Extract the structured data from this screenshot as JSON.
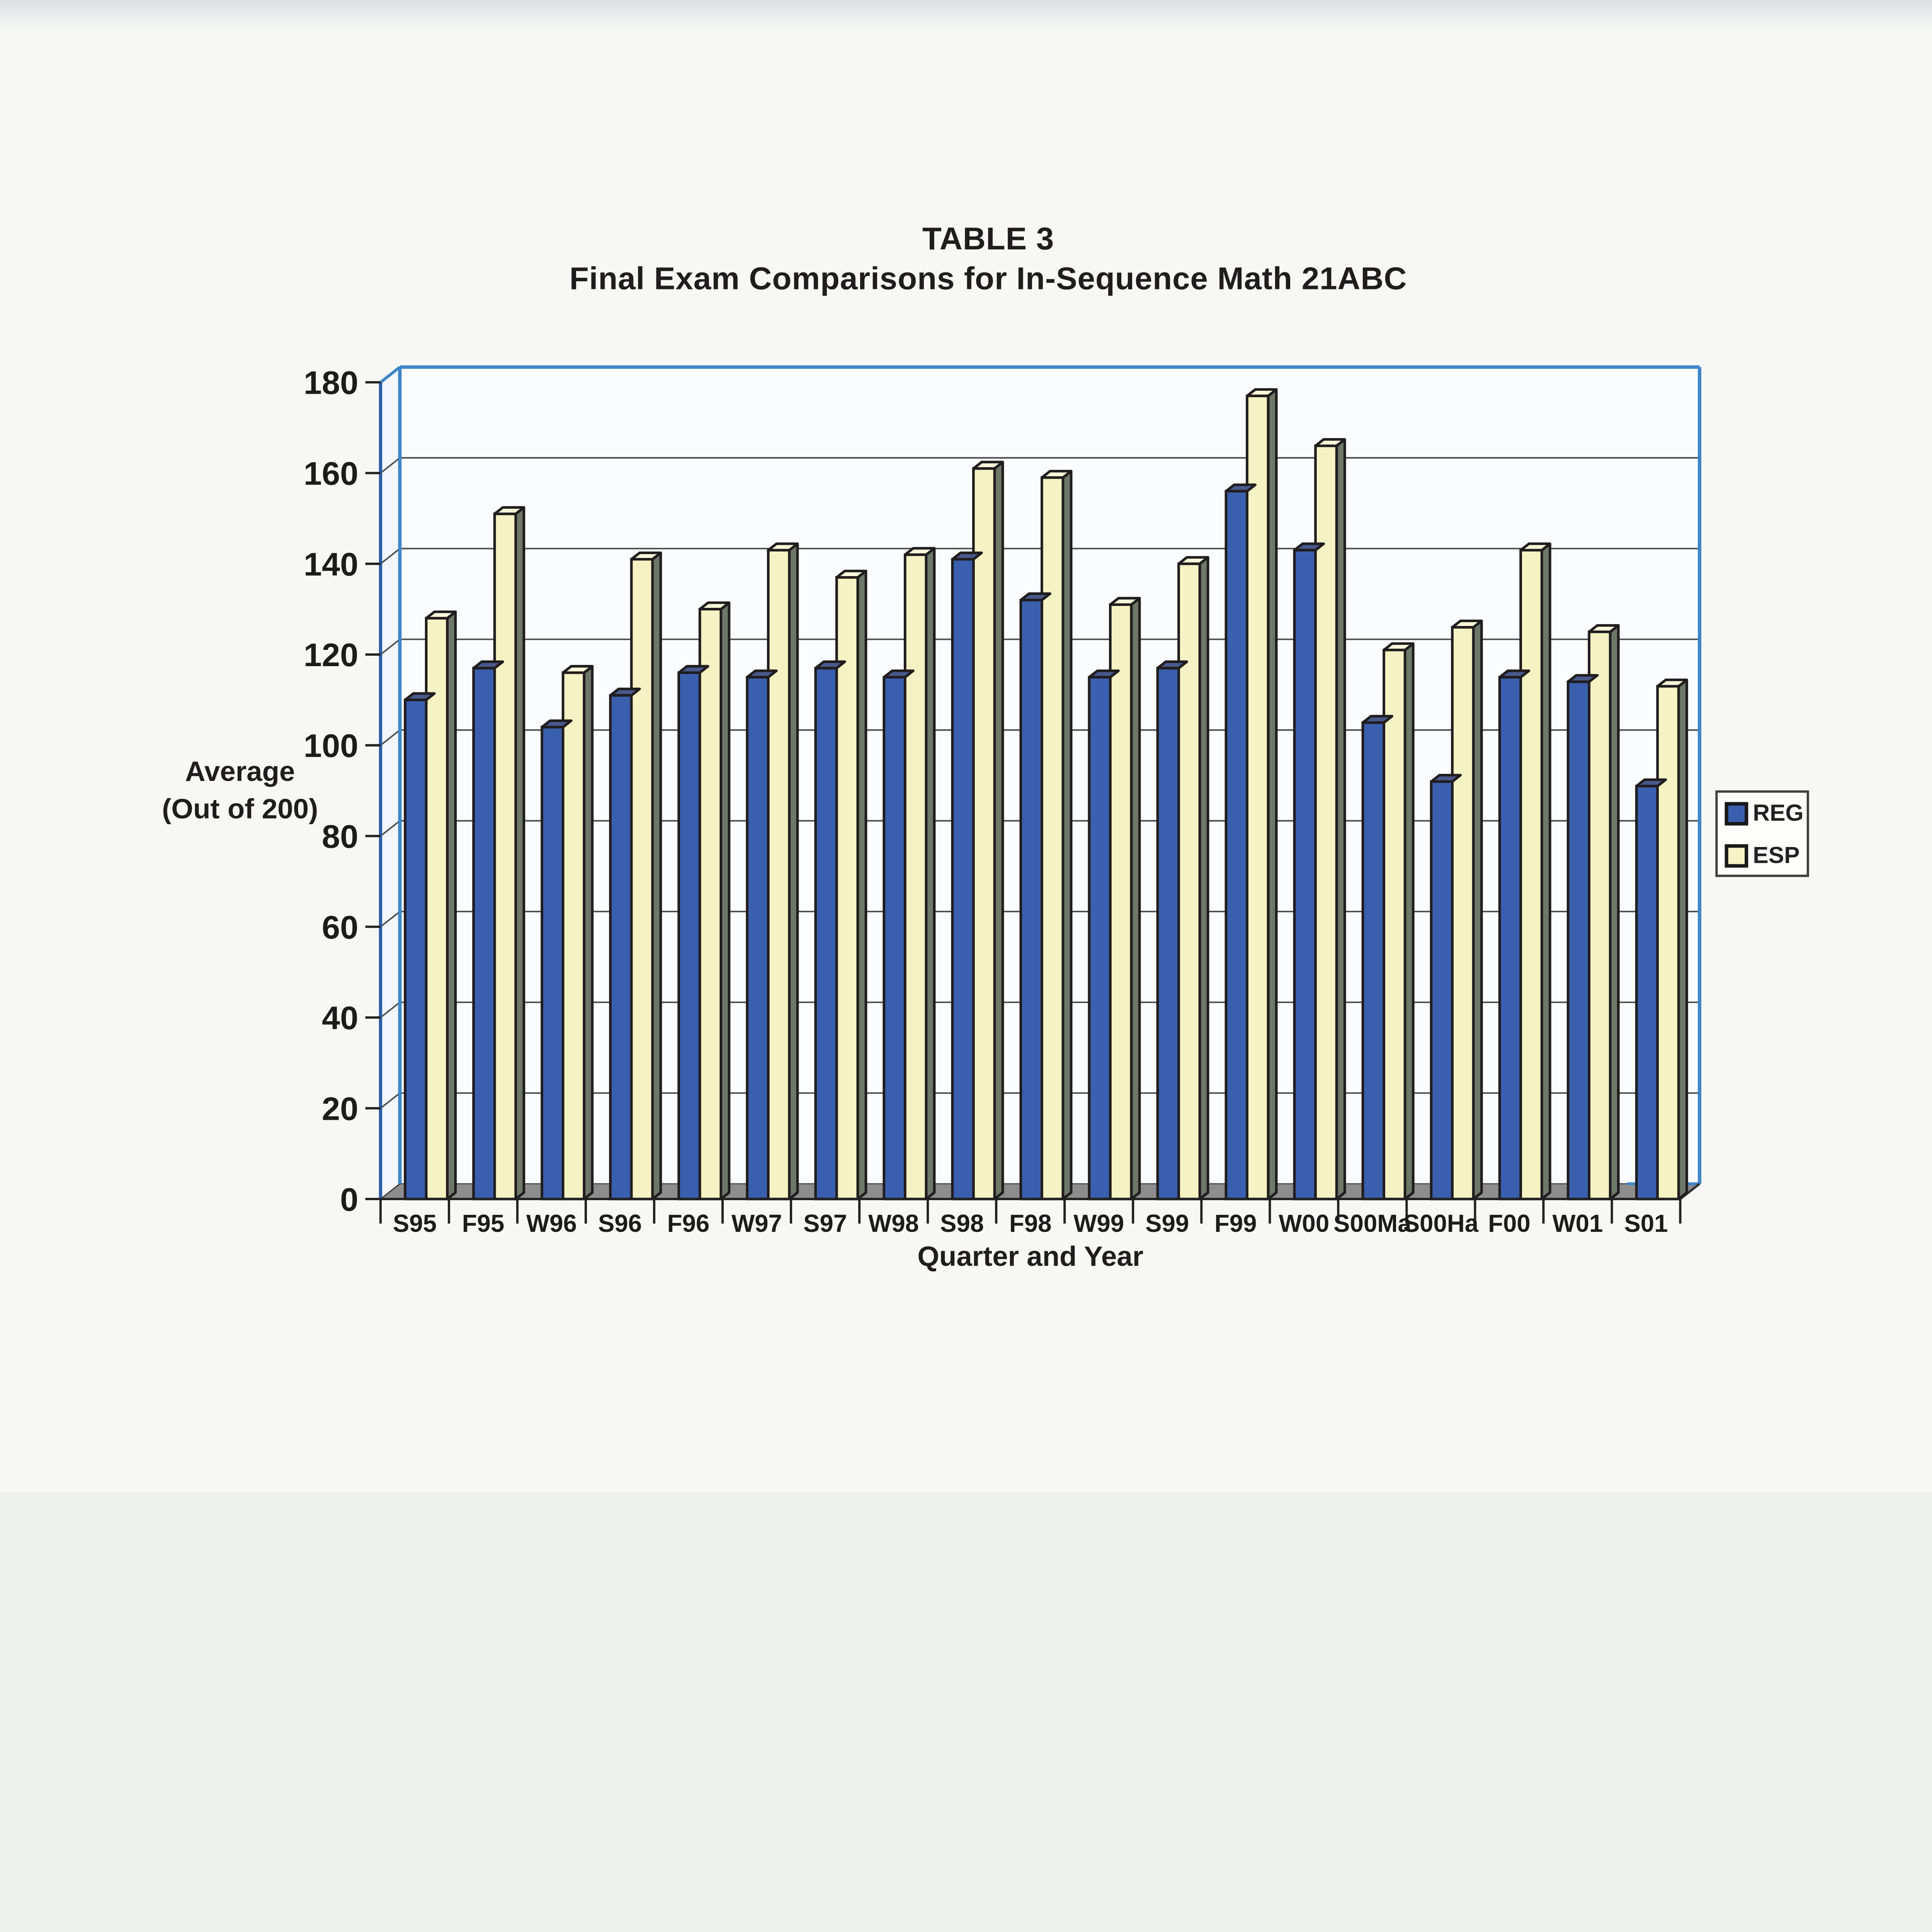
{
  "chart_data": {
    "type": "bar",
    "variant": "3d-clustered-column",
    "title": "TABLE 3",
    "subtitle": "Final Exam Comparisons for In-Sequence Math 21ABC",
    "categories": [
      "S95",
      "F95",
      "W96",
      "S96",
      "F96",
      "W97",
      "S97",
      "W98",
      "S98",
      "F98",
      "W99",
      "S99",
      "F99",
      "W00",
      "S00Ma",
      "S00Ha",
      "F00",
      "W01",
      "S01"
    ],
    "series": [
      {
        "name": "REG",
        "color": "#3a5fae",
        "values": [
          110,
          117,
          104,
          111,
          116,
          115,
          117,
          115,
          141,
          132,
          115,
          117,
          156,
          143,
          105,
          92,
          115,
          114,
          91
        ]
      },
      {
        "name": "ESP",
        "color": "#f5f3c3",
        "values": [
          128,
          151,
          116,
          141,
          130,
          143,
          137,
          142,
          161,
          159,
          131,
          140,
          177,
          166,
          121,
          126,
          143,
          125,
          113
        ]
      }
    ],
    "xlabel": "Quarter and Year",
    "ylabel_line1": "Average",
    "ylabel_line2": "(Out of 200)",
    "ylim": [
      0,
      180
    ],
    "ytick_step": 20,
    "grid": true,
    "legend_position": "right"
  },
  "colors": {
    "reg_face": "#3a5fae",
    "reg_top": "#49598c",
    "esp_face": "#f5f3c3",
    "esp_top": "#f9f8da",
    "esp_side": "#6d7868",
    "outline": "#201d1e",
    "frame": "#3f86c8",
    "axis": "#2d5fa6",
    "grid": "#4c4c4c",
    "floor": "#8d8d8d",
    "wall": "#fbfcff",
    "wall_side": "#f3f7fb",
    "text": "#1c1c1c",
    "paper": "#f7f8f5"
  }
}
